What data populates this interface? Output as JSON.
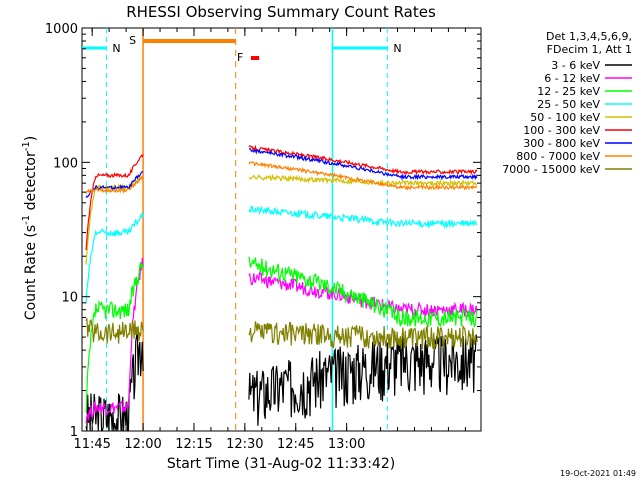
{
  "chart_data": {
    "type": "line",
    "title": "RHESSI Observing Summary Count Rates",
    "xlabel": "Start Time (31-Aug-02 11:33:42)",
    "ylabel_main": "Count Rate (s",
    "ylabel_sup1": "-1",
    "ylabel_mid": " detector",
    "ylabel_sup2": "-1",
    "ylabel_end": ")",
    "yscale": "log",
    "ylim": [
      1,
      1000
    ],
    "xlim_minutes": [
      11.7,
      13.66
    ],
    "x_ticks": [
      {
        "label": "11:45",
        "value": 11.75
      },
      {
        "label": "12:00",
        "value": 12.0
      },
      {
        "label": "12:15",
        "value": 12.25
      },
      {
        "label": "12:30",
        "value": 12.5
      },
      {
        "label": "12:45",
        "value": 12.75
      },
      {
        "label": "13:00",
        "value": 13.0
      }
    ],
    "y_ticks": [
      {
        "label": "1",
        "value": 1
      },
      {
        "label": "10",
        "value": 10
      },
      {
        "label": "100",
        "value": 100
      },
      {
        "label": "1000",
        "value": 1000
      }
    ],
    "legend_header": [
      "Det 1,3,4,5,6,9,",
      "FDecim 1, Att 1"
    ],
    "series": [
      {
        "name": "3 - 6 keV",
        "color": "#000000"
      },
      {
        "name": "6 - 12 keV",
        "color": "#ff00ff"
      },
      {
        "name": "12 - 25 keV",
        "color": "#00ff00"
      },
      {
        "name": "25 - 50 keV",
        "color": "#00ffff"
      },
      {
        "name": "50 - 100 keV",
        "color": "#d4c000"
      },
      {
        "name": "100 - 300 keV",
        "color": "#ff0000"
      },
      {
        "name": "300 - 800 keV",
        "color": "#0000ff"
      },
      {
        "name": "800 - 7000 keV",
        "color": "#ff8000"
      },
      {
        "name": "7000 - 15000 keV",
        "color": "#808000"
      }
    ],
    "markers": [
      {
        "label": "N",
        "color": "#00ffff",
        "type": "night",
        "start": 11.7,
        "end": 11.82
      },
      {
        "label": "N",
        "color": "#00ffff",
        "type": "night",
        "start": 12.93,
        "end": 13.2
      },
      {
        "label": "S",
        "color": "#ff8000",
        "type": "saa",
        "start": 12.0,
        "end": 12.455
      },
      {
        "label": "F",
        "color": "#ff0000",
        "type": "flare",
        "start": 12.53,
        "end": 12.57
      }
    ],
    "footer_timestamp": "19-Oct-2021 01:49"
  }
}
